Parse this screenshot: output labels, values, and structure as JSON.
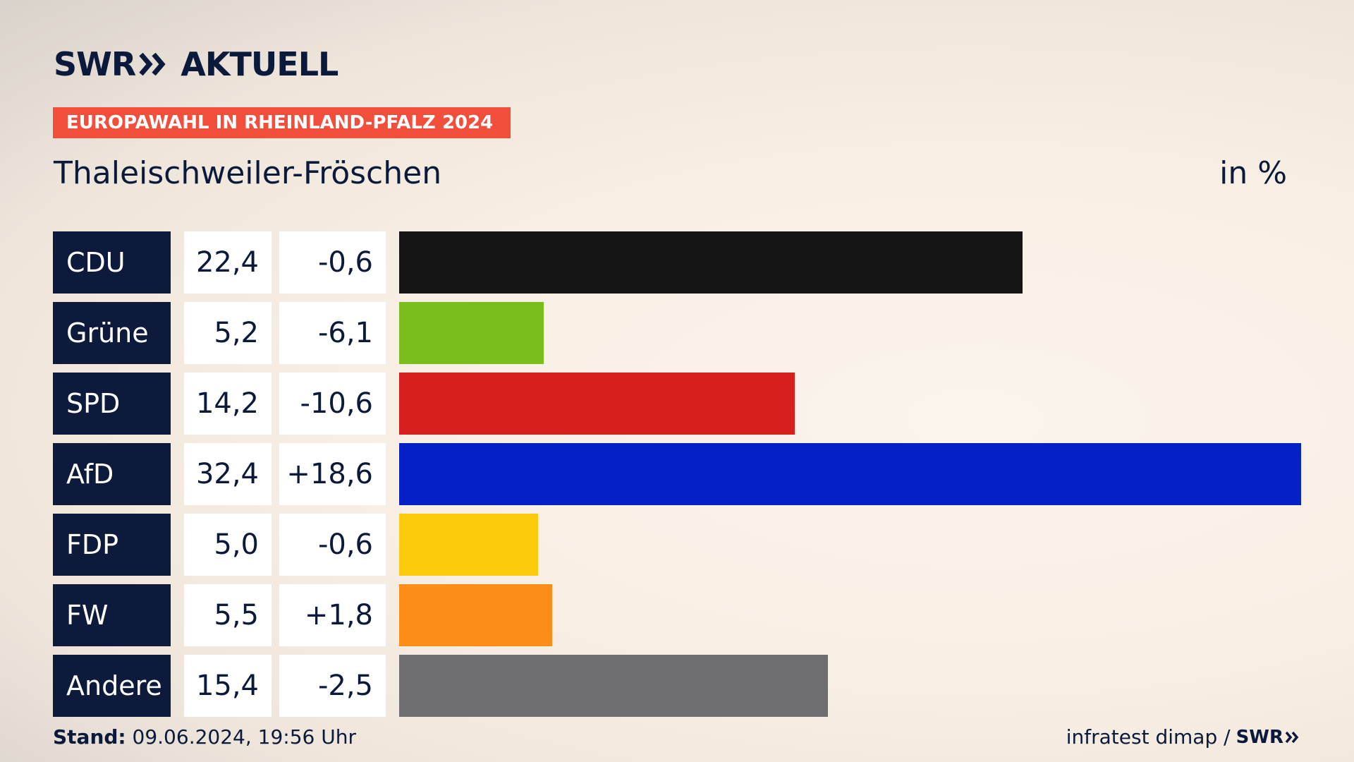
{
  "header": {
    "logo_text_left": "SWR",
    "logo_text_right": "AKTUELL",
    "badge": "EUROPAWAHL IN RHEINLAND-PFALZ 2024",
    "location": "Thaleischweiler-Fröschen",
    "unit": "in %"
  },
  "chart_data": {
    "type": "bar",
    "orientation": "horizontal",
    "categories": [
      "CDU",
      "Grüne",
      "SPD",
      "AfD",
      "FDP",
      "FW",
      "Andere"
    ],
    "values": [
      22.4,
      5.2,
      14.2,
      32.4,
      5.0,
      5.5,
      15.4
    ],
    "value_labels": [
      "22,4",
      "5,2",
      "14,2",
      "32,4",
      "5,0",
      "5,5",
      "15,4"
    ],
    "diff_labels": [
      "-0,6",
      "-6,1",
      "-10,6",
      "+18,6",
      "-0,6",
      "+1,8",
      "-2,5"
    ],
    "colors": [
      "#141414",
      "#7abe1e",
      "#d81f1f",
      "#0421c8",
      "#fccc0c",
      "#fb8d18",
      "#6e6e70"
    ],
    "xlim": [
      0,
      32.4
    ]
  },
  "footer": {
    "stand_label": "Stand:",
    "stand_value": "09.06.2024, 19:56 Uhr",
    "source": "infratest dimap /",
    "source_logo": "SWR"
  }
}
